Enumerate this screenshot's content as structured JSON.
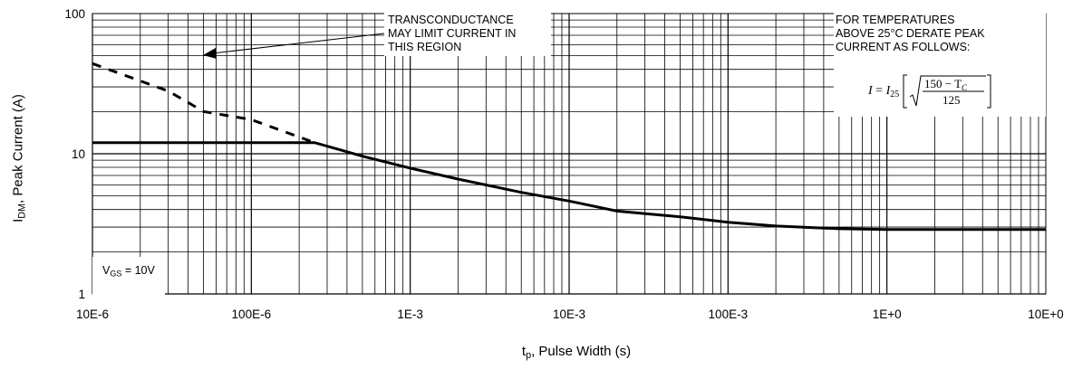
{
  "chart_data": {
    "type": "line",
    "x_scale": "log",
    "y_scale": "log",
    "xlim": [
      1e-05,
      10
    ],
    "ylim": [
      1,
      100
    ],
    "xticks": [
      {
        "value": 1e-05,
        "label": "10E-6"
      },
      {
        "value": 0.0001,
        "label": "100E-6"
      },
      {
        "value": 0.001,
        "label": "1E-3"
      },
      {
        "value": 0.01,
        "label": "10E-3"
      },
      {
        "value": 0.1,
        "label": "100E-3"
      },
      {
        "value": 1,
        "label": "1E+0"
      },
      {
        "value": 10,
        "label": "10E+0"
      }
    ],
    "yticks": [
      {
        "value": 1,
        "label": "1"
      },
      {
        "value": 10,
        "label": "10"
      },
      {
        "value": 100,
        "label": "100"
      }
    ],
    "xlabel_main": "t",
    "xlabel_sub": "p",
    "xlabel_rest": ", Pulse Width (s)",
    "ylabel_main": "I",
    "ylabel_sub": "DM",
    "ylabel_rest": ", Peak Current (A)",
    "grid": true,
    "series": [
      {
        "style": "solid",
        "x": [
          1e-05,
          0.00025,
          0.0005,
          0.001,
          0.002,
          0.005,
          0.01,
          0.02,
          0.05,
          0.1,
          0.2,
          0.5,
          1,
          2,
          5,
          10
        ],
        "y": [
          12,
          12,
          9.6,
          7.9,
          6.6,
          5.3,
          4.6,
          3.9,
          3.55,
          3.25,
          3.05,
          2.92,
          2.88,
          2.88,
          2.88,
          2.88
        ]
      },
      {
        "style": "dashed",
        "x": [
          1e-05,
          3e-05,
          5e-05,
          0.0001,
          0.00025
        ],
        "y": [
          44,
          28,
          20,
          17.5,
          12
        ]
      }
    ],
    "annotations": {
      "transconductance": [
        "TRANSCONDUCTANCE",
        "MAY LIMIT CURRENT IN",
        "THIS REGION"
      ],
      "temperature": [
        "FOR TEMPERATURES",
        "ABOVE 25°C DERATE PEAK",
        "CURRENT AS FOLLOWS:"
      ],
      "formula": {
        "lhs": "I",
        "eq": "=",
        "base": "I",
        "base_sub": "25",
        "numerator": "150 − T",
        "numerator_sub": "C",
        "denominator": "125"
      },
      "condition": {
        "main": "V",
        "sub": "GS",
        "rest": " = 10V"
      }
    }
  },
  "colors": {
    "line": "#000000",
    "grid": "#000000",
    "background": "#ffffff"
  }
}
